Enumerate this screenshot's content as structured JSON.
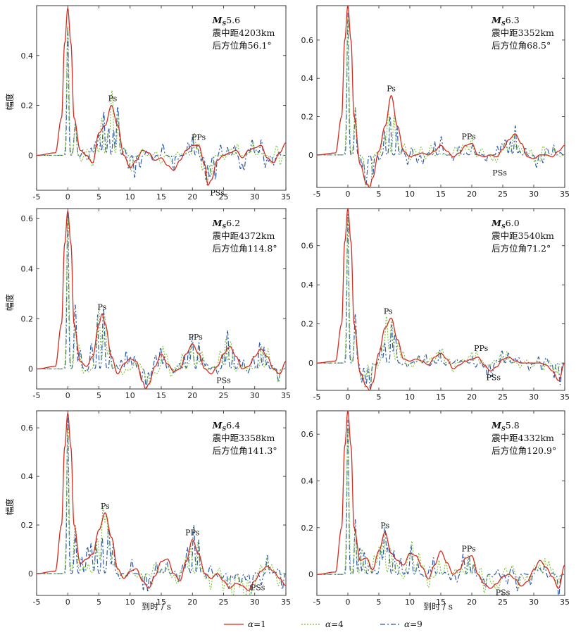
{
  "figure": {
    "x_axis_label": "到时 / s",
    "legend": [
      {
        "symbol": "α",
        "rest": "=1",
        "color": "#d62a1e",
        "dash": "solid"
      },
      {
        "symbol": "α",
        "rest": "=4",
        "color": "#7cc23a",
        "dash": "dotted"
      },
      {
        "symbol": "α",
        "rest": "=9",
        "color": "#2d5aa8",
        "dash": "dashdot"
      }
    ]
  },
  "chart_data": [
    {
      "type": "line",
      "ylabel": "幅度",
      "xlabel": "",
      "xlim": [
        -5,
        35
      ],
      "ylim": [
        -0.14,
        0.6
      ],
      "xticks": [
        -5,
        0,
        5,
        10,
        15,
        20,
        25,
        30,
        35
      ],
      "yticks": [
        0,
        0.2,
        0.4
      ],
      "magnitude_prefix": "M",
      "magnitude_sub": "S",
      "magnitude_value": "5.6",
      "distance_text": "震中距4203km",
      "azimuth_text": "后方位角56.1°",
      "phases": [
        {
          "label": "Ps",
          "x": 7.2,
          "y": 0.2
        },
        {
          "label": "PPs",
          "x": 21,
          "y": 0.045
        },
        {
          "label": "PSs",
          "x": 24,
          "y": -0.125
        }
      ],
      "series": [
        {
          "peak": 0.59,
          "x": [
            -5,
            -2,
            -1,
            -0.5,
            0,
            0.5,
            1,
            2,
            3,
            4,
            5,
            6,
            7,
            8,
            9,
            10,
            11,
            12,
            13,
            14,
            15,
            16,
            17,
            18,
            19,
            20,
            21,
            22,
            22.5,
            23,
            24,
            25,
            26,
            27,
            28,
            29,
            30,
            31,
            32,
            33,
            34,
            35
          ],
          "y": [
            0,
            0.01,
            0.15,
            0.45,
            0.59,
            0.45,
            0.15,
            0.02,
            0.0,
            -0.03,
            0.09,
            0.12,
            0.2,
            0.12,
            0.0,
            -0.05,
            -0.02,
            0.02,
            0.01,
            -0.02,
            -0.01,
            -0.04,
            -0.06,
            -0.02,
            0.02,
            0.04,
            0.04,
            -0.04,
            -0.12,
            -0.1,
            -0.02,
            0.0,
            0.01,
            0.02,
            -0.01,
            0.02,
            0.03,
            0.04,
            -0.01,
            -0.03,
            0.01,
            0.05
          ]
        },
        {
          "peak": 0.52,
          "seed": 11,
          "amp": 0.05
        },
        {
          "peak": 0.51,
          "seed": 17,
          "amp": 0.06
        }
      ]
    },
    {
      "type": "line",
      "ylabel": "",
      "xlabel": "",
      "xlim": [
        -5,
        35
      ],
      "ylim": [
        -0.17,
        0.78
      ],
      "xticks": [
        -5,
        0,
        5,
        10,
        15,
        20,
        25,
        30,
        35
      ],
      "yticks": [
        0,
        0.2,
        0.4,
        0.6
      ],
      "magnitude_prefix": "M",
      "magnitude_sub": "S",
      "magnitude_value": "6.3",
      "distance_text": "震中距3352km",
      "azimuth_text": "后方位角68.5°",
      "phases": [
        {
          "label": "Ps",
          "x": 7,
          "y": 0.31
        },
        {
          "label": "PPs",
          "x": 19.5,
          "y": 0.06
        },
        {
          "label": "PSs",
          "x": 24.5,
          "y": -0.06
        }
      ],
      "series": [
        {
          "peak": 0.78,
          "x": [
            -5,
            -2,
            -1,
            -0.5,
            0,
            0.5,
            1,
            2,
            3,
            3.5,
            4,
            5,
            6,
            7,
            8,
            9,
            10,
            11,
            12,
            13,
            14,
            15,
            16,
            17,
            18,
            19,
            20,
            21,
            22,
            23,
            24,
            25,
            26,
            27,
            28,
            29,
            30,
            31,
            32,
            33,
            34,
            35
          ],
          "y": [
            0,
            0.01,
            0.2,
            0.6,
            0.78,
            0.6,
            0.2,
            -0.05,
            -0.15,
            -0.17,
            -0.12,
            0.02,
            0.15,
            0.31,
            0.15,
            0.02,
            -0.01,
            0.0,
            0.01,
            0.0,
            0.02,
            0.05,
            0.02,
            -0.01,
            0.01,
            0.05,
            0.06,
            0.0,
            -0.01,
            0.0,
            -0.01,
            0.03,
            0.08,
            0.11,
            0.06,
            -0.01,
            -0.02,
            0.0,
            0.0,
            -0.01,
            0.02,
            0.05
          ]
        },
        {
          "peak": 0.72,
          "seed": 23,
          "amp": 0.05
        },
        {
          "peak": 0.74,
          "seed": 29,
          "amp": 0.06
        }
      ]
    },
    {
      "type": "line",
      "ylabel": "幅度",
      "xlabel": "",
      "xlim": [
        -5,
        35
      ],
      "ylim": [
        -0.08,
        0.64
      ],
      "xticks": [
        -5,
        0,
        5,
        10,
        15,
        20,
        25,
        30,
        35
      ],
      "yticks": [
        0,
        0.2,
        0.4,
        0.6
      ],
      "magnitude_prefix": "M",
      "magnitude_sub": "S",
      "magnitude_value": "6.2",
      "distance_text": "震中距4372km",
      "azimuth_text": "后方位角114.8°",
      "phases": [
        {
          "label": "Ps",
          "x": 5.5,
          "y": 0.22
        },
        {
          "label": "PPs",
          "x": 20.5,
          "y": 0.1
        },
        {
          "label": "PSs",
          "x": 25,
          "y": -0.02
        }
      ],
      "series": [
        {
          "peak": 0.63,
          "x": [
            -5,
            -2,
            -1,
            -0.5,
            0,
            0.5,
            1,
            2,
            3,
            4,
            5,
            5.5,
            6,
            7,
            8,
            9,
            10,
            11,
            12,
            12.5,
            13,
            14,
            15,
            16,
            17,
            18,
            19,
            20,
            21,
            22,
            23,
            24,
            25,
            26,
            27,
            28,
            29,
            30,
            31,
            32,
            33,
            34,
            35
          ],
          "y": [
            0,
            0.01,
            0.18,
            0.5,
            0.63,
            0.5,
            0.18,
            0.03,
            0.01,
            0.05,
            0.18,
            0.22,
            0.18,
            0.05,
            -0.02,
            0.02,
            0.04,
            0.03,
            -0.05,
            -0.08,
            -0.06,
            0.01,
            0.06,
            0.02,
            -0.01,
            0.0,
            0.06,
            0.1,
            0.06,
            0.0,
            -0.02,
            0.01,
            0.06,
            0.09,
            0.05,
            0.0,
            0.01,
            0.05,
            0.08,
            0.05,
            0.0,
            -0.02,
            0.03
          ]
        },
        {
          "peak": 0.6,
          "seed": 31,
          "amp": 0.05
        },
        {
          "peak": 0.62,
          "seed": 37,
          "amp": 0.06
        }
      ]
    },
    {
      "type": "line",
      "ylabel": "",
      "xlabel": "",
      "xlim": [
        -5,
        35
      ],
      "ylim": [
        -0.14,
        0.79
      ],
      "xticks": [
        -5,
        0,
        5,
        10,
        15,
        20,
        25,
        30,
        35
      ],
      "yticks": [
        0,
        0.2,
        0.4,
        0.6
      ],
      "magnitude_prefix": "M",
      "magnitude_sub": "S",
      "magnitude_value": "6.0",
      "distance_text": "震中距3540km",
      "azimuth_text": "后方位角71.2°",
      "phases": [
        {
          "label": "Ps",
          "x": 6.5,
          "y": 0.23
        },
        {
          "label": "PPs",
          "x": 21.5,
          "y": 0.04
        },
        {
          "label": "PSs",
          "x": 23.5,
          "y": -0.04
        }
      ],
      "series": [
        {
          "peak": 0.79,
          "x": [
            -5,
            -2,
            -1,
            -0.5,
            0,
            0.5,
            1,
            2,
            3,
            3.5,
            4,
            5,
            6,
            7,
            8,
            9,
            10,
            11,
            12,
            13,
            14,
            15,
            16,
            17,
            18,
            19,
            20,
            21,
            22,
            23,
            24,
            25,
            26,
            27,
            28,
            29,
            30,
            31,
            32,
            33,
            34,
            35
          ],
          "y": [
            0,
            0.01,
            0.2,
            0.62,
            0.79,
            0.62,
            0.2,
            -0.05,
            -0.12,
            -0.14,
            -0.1,
            0.05,
            0.18,
            0.23,
            0.12,
            0.02,
            0.01,
            0.02,
            0.01,
            -0.01,
            0.03,
            0.05,
            0.02,
            -0.03,
            -0.01,
            0.01,
            0.02,
            0.03,
            -0.01,
            -0.04,
            -0.02,
            0.02,
            0.03,
            0.01,
            0.0,
            0.0,
            0.0,
            0.0,
            -0.01,
            -0.04,
            -0.09,
            0.0
          ]
        },
        {
          "peak": 0.74,
          "seed": 41,
          "amp": 0.04
        },
        {
          "peak": 0.76,
          "seed": 43,
          "amp": 0.05
        }
      ]
    },
    {
      "type": "line",
      "ylabel": "幅度",
      "xlabel": "到时 / s",
      "xlim": [
        -5,
        35
      ],
      "ylim": [
        -0.09,
        0.67
      ],
      "xticks": [
        -5,
        0,
        5,
        10,
        15,
        20,
        25,
        30,
        35
      ],
      "yticks": [
        0,
        0.2,
        0.4,
        0.6
      ],
      "magnitude_prefix": "M",
      "magnitude_sub": "S",
      "magnitude_value": "6.4",
      "distance_text": "震中距3358km",
      "azimuth_text": "后方位角141.3°",
      "phases": [
        {
          "label": "Ps",
          "x": 6,
          "y": 0.25
        },
        {
          "label": "PPs",
          "x": 20,
          "y": 0.14
        },
        {
          "label": "PSs",
          "x": 30.5,
          "y": -0.03
        }
      ],
      "series": [
        {
          "peak": 0.66,
          "x": [
            -5,
            -2,
            -1,
            -0.5,
            0,
            0.5,
            1,
            2,
            3,
            4,
            5,
            6,
            7,
            8,
            9,
            10,
            11,
            12,
            13,
            14,
            15,
            16,
            17,
            18,
            19,
            20,
            21,
            22,
            23,
            24,
            25,
            26,
            27,
            28,
            29,
            30,
            31,
            32,
            33,
            34,
            35
          ],
          "y": [
            0,
            0.01,
            0.2,
            0.52,
            0.66,
            0.52,
            0.2,
            0.04,
            0.06,
            0.08,
            0.18,
            0.25,
            0.15,
            0.02,
            -0.02,
            0.01,
            0.02,
            -0.03,
            -0.06,
            -0.01,
            0.05,
            0.06,
            0.0,
            -0.03,
            0.05,
            0.14,
            0.08,
            0.0,
            -0.02,
            0.0,
            -0.03,
            -0.06,
            -0.04,
            -0.05,
            -0.07,
            -0.03,
            0.01,
            0.03,
            0.01,
            -0.02,
            -0.05
          ]
        },
        {
          "peak": 0.6,
          "seed": 53,
          "amp": 0.05
        },
        {
          "peak": 0.64,
          "seed": 59,
          "amp": 0.06
        }
      ]
    },
    {
      "type": "line",
      "ylabel": "",
      "xlabel": "到时 / s",
      "xlim": [
        -5,
        35
      ],
      "ylim": [
        -0.09,
        0.7
      ],
      "xticks": [
        -5,
        0,
        5,
        10,
        15,
        20,
        25,
        30,
        35
      ],
      "yticks": [
        0,
        0.2,
        0.4,
        0.6
      ],
      "magnitude_prefix": "M",
      "magnitude_sub": "S",
      "magnitude_value": "5.8",
      "distance_text": "震中距4332km",
      "azimuth_text": "后方位角120.9°",
      "phases": [
        {
          "label": "Ps",
          "x": 6,
          "y": 0.18
        },
        {
          "label": "PPs",
          "x": 19.5,
          "y": 0.08
        },
        {
          "label": "PSs",
          "x": 25,
          "y": -0.05
        }
      ],
      "series": [
        {
          "peak": 0.7,
          "x": [
            -5,
            -2,
            -1,
            -0.5,
            0,
            0.5,
            1,
            2,
            3,
            4,
            5,
            6,
            7,
            8,
            9,
            10,
            11,
            12,
            13,
            14,
            15,
            16,
            17,
            18,
            19,
            20,
            21,
            22,
            23,
            24,
            25,
            26,
            27,
            28,
            29,
            30,
            31,
            32,
            33,
            34,
            35
          ],
          "y": [
            0,
            0.01,
            0.2,
            0.55,
            0.7,
            0.55,
            0.2,
            0.06,
            0.07,
            0.02,
            0.1,
            0.18,
            0.09,
            0.06,
            0.04,
            0.09,
            0.08,
            0.03,
            -0.02,
            0.04,
            0.1,
            0.05,
            0.0,
            0.02,
            0.07,
            0.08,
            0.0,
            -0.04,
            -0.06,
            -0.04,
            -0.01,
            0.0,
            -0.02,
            -0.05,
            -0.03,
            0.02,
            0.06,
            0.03,
            -0.01,
            -0.06,
            0.04
          ]
        },
        {
          "peak": 0.63,
          "seed": 61,
          "amp": 0.05
        },
        {
          "peak": 0.66,
          "seed": 67,
          "amp": 0.06
        }
      ]
    }
  ]
}
